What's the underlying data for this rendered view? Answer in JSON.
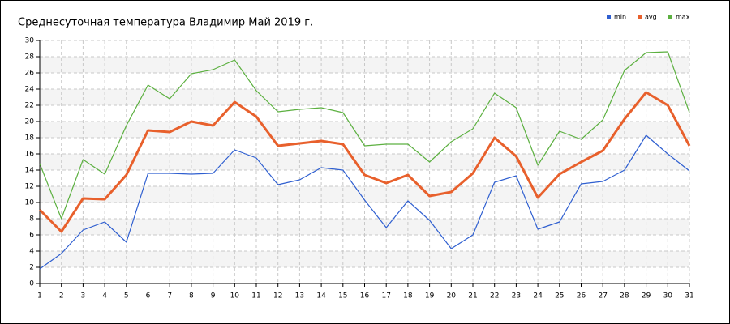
{
  "chart_data": {
    "type": "line",
    "title": "Среднесуточная температура Владимир  Май 2019 г.",
    "x": [
      1,
      2,
      3,
      4,
      5,
      6,
      7,
      8,
      9,
      10,
      11,
      12,
      13,
      14,
      15,
      16,
      17,
      18,
      19,
      20,
      21,
      22,
      23,
      24,
      25,
      26,
      27,
      28,
      29,
      30,
      31
    ],
    "xlim": [
      1,
      31
    ],
    "xticks": [
      1,
      2,
      3,
      4,
      5,
      6,
      7,
      8,
      9,
      10,
      11,
      12,
      13,
      14,
      15,
      16,
      17,
      18,
      19,
      20,
      21,
      22,
      23,
      24,
      25,
      26,
      27,
      28,
      29,
      30,
      31
    ],
    "ylim": [
      0,
      30
    ],
    "yticks": [
      0,
      2,
      4,
      6,
      8,
      10,
      12,
      14,
      16,
      18,
      20,
      22,
      24,
      26,
      28,
      30
    ],
    "grid": true,
    "legend": "top-right",
    "series": [
      {
        "name": "min",
        "color": "#2f5fd0",
        "values": [
          1.8,
          3.7,
          6.6,
          7.6,
          5.1,
          13.6,
          13.6,
          13.5,
          13.6,
          16.5,
          15.5,
          12.2,
          12.8,
          14.3,
          14.0,
          10.3,
          6.9,
          10.2,
          7.8,
          4.3,
          6.0,
          12.5,
          13.3,
          6.7,
          7.6,
          12.3,
          12.6,
          14.0,
          18.3,
          16.0,
          13.9
        ]
      },
      {
        "name": "avg",
        "color": "#e8602c",
        "values": [
          9.1,
          6.4,
          10.5,
          10.4,
          13.4,
          18.9,
          18.7,
          20.0,
          19.5,
          22.4,
          20.6,
          17.0,
          17.3,
          17.6,
          17.2,
          13.4,
          12.4,
          13.4,
          10.8,
          11.3,
          13.6,
          18.0,
          15.7,
          10.6,
          13.5,
          15.0,
          16.4,
          20.3,
          23.6,
          22.0,
          17.0
        ]
      },
      {
        "name": "max",
        "color": "#5cb040",
        "values": [
          14.8,
          8.0,
          15.3,
          13.5,
          19.5,
          24.5,
          22.8,
          25.9,
          26.4,
          27.6,
          23.8,
          21.2,
          21.5,
          21.7,
          21.1,
          17.0,
          17.2,
          17.2,
          15.0,
          17.5,
          19.1,
          23.5,
          21.7,
          14.6,
          18.8,
          17.8,
          20.2,
          26.3,
          28.5,
          28.6,
          21.1
        ]
      }
    ]
  }
}
